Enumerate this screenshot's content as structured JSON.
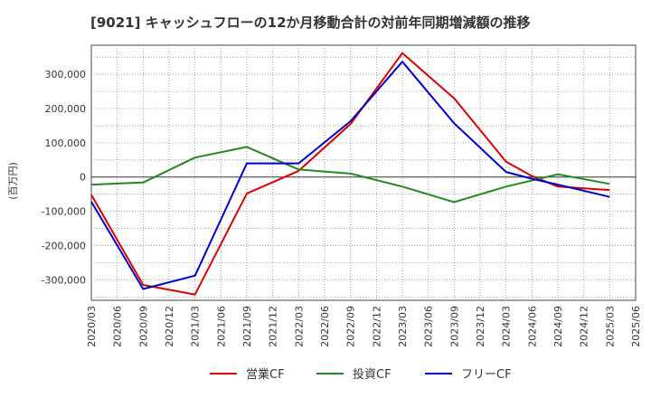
{
  "chart_data": {
    "type": "line",
    "title": "[9021]  キャッシュフローの12か月移動合計の対前年同期増減額の推移",
    "ylabel": "(百万円)",
    "xlabel": "",
    "ylim": [
      -360000,
      385000
    ],
    "yticks": [
      -300000,
      -200000,
      -100000,
      0,
      100000,
      200000,
      300000
    ],
    "ytick_labels": [
      "-300,000",
      "-200,000",
      "-100,000",
      "0",
      "100,000",
      "200,000",
      "300,000"
    ],
    "x_tick_labels": [
      "2020/03",
      "2020/06",
      "2020/09",
      "2020/12",
      "2021/03",
      "2021/06",
      "2021/09",
      "2021/12",
      "2022/03",
      "2022/06",
      "2022/09",
      "2022/12",
      "2023/03",
      "2023/06",
      "2023/09",
      "2023/12",
      "2024/03",
      "2024/06",
      "2024/09",
      "2024/12",
      "2025/03",
      "2025/06"
    ],
    "grid": true,
    "legend_position": "bottom",
    "series": [
      {
        "name": "営業CF",
        "color": "#dd0000",
        "points": [
          [
            "2020/03",
            -52000
          ],
          [
            "2020/09",
            -315000
          ],
          [
            "2021/03",
            -343000
          ],
          [
            "2021/09",
            -48000
          ],
          [
            "2022/03",
            18000
          ],
          [
            "2022/09",
            155000
          ],
          [
            "2023/03",
            362000
          ],
          [
            "2023/09",
            230000
          ],
          [
            "2024/03",
            45000
          ],
          [
            "2024/06",
            3000
          ],
          [
            "2024/09",
            -28000
          ],
          [
            "2025/03",
            -38000
          ]
        ]
      },
      {
        "name": "投資CF",
        "color": "#228822",
        "points": [
          [
            "2020/03",
            -22000
          ],
          [
            "2020/09",
            -16000
          ],
          [
            "2021/03",
            57000
          ],
          [
            "2021/09",
            88000
          ],
          [
            "2022/03",
            22000
          ],
          [
            "2022/09",
            10000
          ],
          [
            "2023/03",
            -28000
          ],
          [
            "2023/09",
            -73000
          ],
          [
            "2024/03",
            -28000
          ],
          [
            "2024/09",
            8000
          ],
          [
            "2025/03",
            -20000
          ]
        ]
      },
      {
        "name": "フリーCF",
        "color": "#0000cc",
        "points": [
          [
            "2020/03",
            -72000
          ],
          [
            "2020/09",
            -327000
          ],
          [
            "2021/03",
            -288000
          ],
          [
            "2021/09",
            40000
          ],
          [
            "2022/03",
            40000
          ],
          [
            "2022/09",
            163000
          ],
          [
            "2023/03",
            337000
          ],
          [
            "2023/09",
            157000
          ],
          [
            "2024/03",
            15000
          ],
          [
            "2024/06",
            -5000
          ],
          [
            "2024/09",
            -22000
          ],
          [
            "2025/03",
            -58000
          ]
        ]
      }
    ]
  }
}
